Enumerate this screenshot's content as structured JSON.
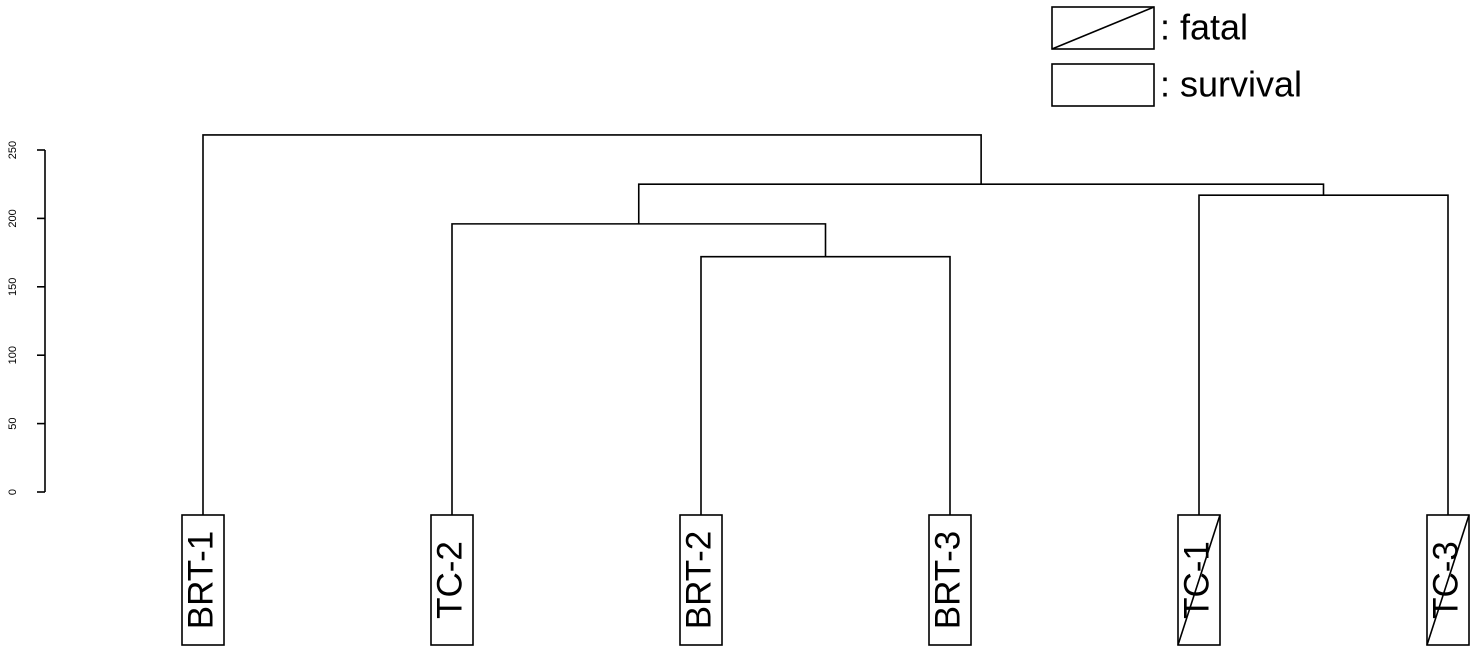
{
  "chart_data": {
    "type": "dendrogram",
    "leaves": [
      {
        "label": "BRT-1",
        "status": 1
      },
      {
        "label": "TC-2",
        "status": 1
      },
      {
        "label": "BRT-2",
        "status": 1
      },
      {
        "label": "BRT-3",
        "status": 1
      },
      {
        "label": "TC-1",
        "status": 0
      },
      {
        "label": "TC-3",
        "status": 0
      }
    ],
    "merges": [
      {
        "children": [
          2,
          3
        ],
        "height": 172
      },
      {
        "children": [
          1,
          6
        ],
        "height": 196
      },
      {
        "children": [
          4,
          5
        ],
        "height": 217
      },
      {
        "children": [
          7,
          8
        ],
        "height": 225
      },
      {
        "children": [
          0,
          9
        ],
        "height": 261
      }
    ],
    "legend": [
      {
        "label": ": fatal",
        "hatch": true
      },
      {
        "label": ": survival",
        "hatch": false
      }
    ],
    "ylim": [
      0,
      250
    ],
    "yticks": [
      0,
      50,
      100,
      150,
      200,
      250
    ]
  }
}
